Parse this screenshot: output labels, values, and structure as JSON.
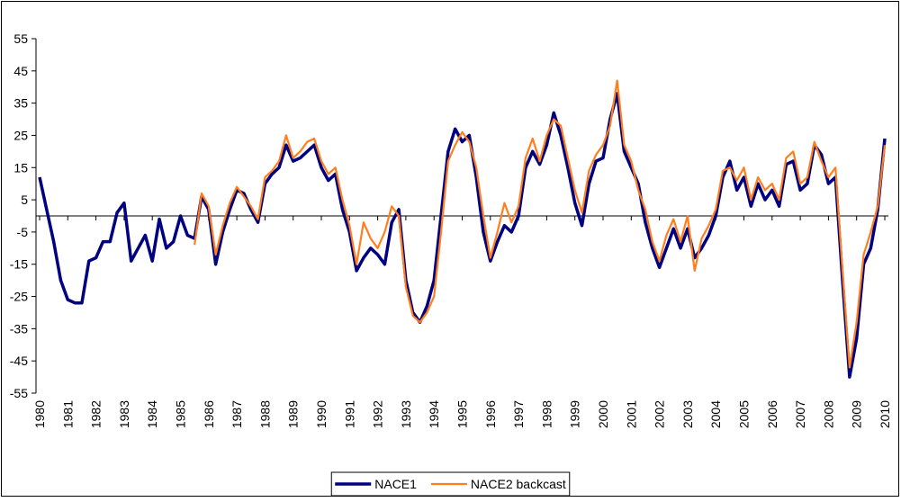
{
  "chart_data": {
    "type": "line",
    "x": [
      1980,
      1980.25,
      1980.5,
      1980.75,
      1981,
      1981.25,
      1981.5,
      1981.75,
      1982,
      1982.25,
      1982.5,
      1982.75,
      1983,
      1983.25,
      1983.5,
      1983.75,
      1984,
      1984.25,
      1984.5,
      1984.75,
      1985,
      1985.25,
      1985.5,
      1985.75,
      1986,
      1986.25,
      1986.5,
      1986.75,
      1987,
      1987.25,
      1987.5,
      1987.75,
      1988,
      1988.25,
      1988.5,
      1988.75,
      1989,
      1989.25,
      1989.5,
      1989.75,
      1990,
      1990.25,
      1990.5,
      1990.75,
      1991,
      1991.25,
      1991.5,
      1991.75,
      1992,
      1992.25,
      1992.5,
      1992.75,
      1993,
      1993.25,
      1993.5,
      1993.75,
      1994,
      1994.25,
      1994.5,
      1994.75,
      1995,
      1995.25,
      1995.5,
      1995.75,
      1996,
      1996.25,
      1996.5,
      1996.75,
      1997,
      1997.25,
      1997.5,
      1997.75,
      1998,
      1998.25,
      1998.5,
      1998.75,
      1999,
      1999.25,
      1999.5,
      1999.75,
      2000,
      2000.25,
      2000.5,
      2000.75,
      2001,
      2001.25,
      2001.5,
      2001.75,
      2002,
      2002.25,
      2002.5,
      2002.75,
      2003,
      2003.25,
      2003.5,
      2003.75,
      2004,
      2004.25,
      2004.5,
      2004.75,
      2005,
      2005.25,
      2005.5,
      2005.75,
      2006,
      2006.25,
      2006.5,
      2006.75,
      2007,
      2007.25,
      2007.5,
      2007.75,
      2008,
      2008.25,
      2008.5,
      2008.75,
      2009,
      2009.25,
      2009.5,
      2009.75,
      2010
    ],
    "series": [
      {
        "name": "NACE1",
        "color": "#000080",
        "values": [
          12,
          2,
          -8,
          -20,
          -26,
          -27,
          -27,
          -14,
          -13,
          -8,
          -8,
          1,
          4,
          -14,
          -10,
          -6,
          -14,
          -1,
          -10,
          -8,
          0,
          -6,
          -7,
          6,
          2,
          -15,
          -5,
          2,
          8,
          7,
          2,
          -2,
          10,
          13,
          15,
          22,
          17,
          18,
          20,
          22,
          15,
          11,
          13,
          2,
          -5,
          -17,
          -13,
          -10,
          -12,
          -15,
          -2,
          2,
          -20,
          -30,
          -33,
          -28,
          -20,
          0,
          20,
          27,
          23,
          25,
          12,
          -5,
          -14,
          -8,
          -3,
          -5,
          0,
          15,
          20,
          16,
          22,
          32,
          25,
          15,
          4,
          -3,
          10,
          17,
          18,
          30,
          38,
          20,
          15,
          10,
          -2,
          -10,
          -16,
          -10,
          -4,
          -10,
          -4,
          -13,
          -10,
          -6,
          0,
          12,
          17,
          8,
          12,
          3,
          10,
          5,
          8,
          3,
          16,
          17,
          8,
          10,
          22,
          19,
          10,
          12,
          -20,
          -50,
          -38,
          -15,
          -10,
          2,
          24
        ]
      },
      {
        "name": "NACE2 backcast",
        "color": "#ff7f1e",
        "values": [
          null,
          null,
          null,
          null,
          null,
          null,
          null,
          null,
          null,
          null,
          null,
          null,
          null,
          null,
          null,
          null,
          null,
          null,
          null,
          null,
          null,
          null,
          -9,
          7,
          3,
          -12,
          -3,
          4,
          9,
          6,
          3,
          -1,
          12,
          14,
          17,
          25,
          18,
          20,
          23,
          24,
          17,
          13,
          15,
          5,
          -3,
          -15,
          -2,
          -7,
          -10,
          -5,
          3,
          0,
          -22,
          -31,
          -33,
          -30,
          -25,
          -5,
          17,
          22,
          26,
          23,
          15,
          0,
          -13,
          -5,
          4,
          -2,
          3,
          18,
          24,
          17,
          25,
          30,
          28,
          18,
          8,
          1,
          14,
          19,
          22,
          28,
          42,
          22,
          17,
          8,
          2,
          -8,
          -14,
          -6,
          -1,
          -8,
          0,
          -17,
          -7,
          -3,
          2,
          14,
          15,
          11,
          15,
          5,
          12,
          8,
          10,
          5,
          18,
          20,
          10,
          12,
          23,
          17,
          12,
          15,
          -17,
          -47,
          -33,
          -12,
          -5,
          3,
          22
        ]
      }
    ],
    "xlim": [
      1980,
      2010
    ],
    "xticks": [
      1980,
      1981,
      1982,
      1983,
      1984,
      1985,
      1986,
      1987,
      1988,
      1989,
      1990,
      1991,
      1992,
      1993,
      1994,
      1995,
      1996,
      1997,
      1998,
      1999,
      2000,
      2001,
      2002,
      2003,
      2004,
      2005,
      2006,
      2007,
      2008,
      2009,
      2010
    ],
    "ylim": [
      -55,
      55
    ],
    "yticks": [
      -55,
      -45,
      -35,
      -25,
      -15,
      -5,
      5,
      15,
      25,
      35,
      45,
      55
    ],
    "legend": "bottom"
  }
}
